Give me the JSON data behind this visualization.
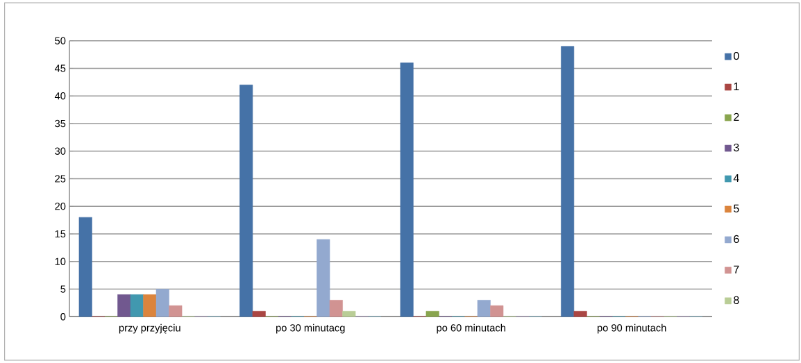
{
  "chart_data": {
    "type": "bar",
    "categories": [
      "przy przyjęciu",
      "po 30 minutacg",
      "po 60 minutach",
      "po 90 minutach"
    ],
    "series": [
      {
        "name": "0",
        "color": "#4572a7",
        "values": [
          18,
          42,
          46,
          49
        ]
      },
      {
        "name": "1",
        "color": "#aa4643",
        "values": [
          0,
          1,
          0,
          1
        ]
      },
      {
        "name": "2",
        "color": "#89a54e",
        "values": [
          0,
          0,
          1,
          0
        ]
      },
      {
        "name": "3",
        "color": "#71588f",
        "values": [
          4,
          0,
          0,
          0
        ]
      },
      {
        "name": "4",
        "color": "#4198af",
        "values": [
          4,
          0,
          0,
          0
        ]
      },
      {
        "name": "5",
        "color": "#db843d",
        "values": [
          4,
          0,
          0,
          0
        ]
      },
      {
        "name": "6",
        "color": "#93a9cf",
        "values": [
          5,
          14,
          3,
          0
        ]
      },
      {
        "name": "7",
        "color": "#d19392",
        "values": [
          2,
          3,
          2,
          0
        ]
      },
      {
        "name": "8",
        "color": "#b9cd96",
        "values": [
          0,
          1,
          0,
          0
        ]
      },
      {
        "color": "#a99bbd",
        "values": [
          0,
          0,
          0,
          0
        ]
      },
      {
        "color": "#7fb3c6",
        "values": [
          0,
          0,
          0,
          0
        ]
      }
    ],
    "ylim": [
      0,
      50
    ],
    "yticks": [
      0,
      5,
      10,
      15,
      20,
      25,
      30,
      35,
      40,
      45,
      50
    ],
    "grid": "y",
    "legend": "right"
  }
}
